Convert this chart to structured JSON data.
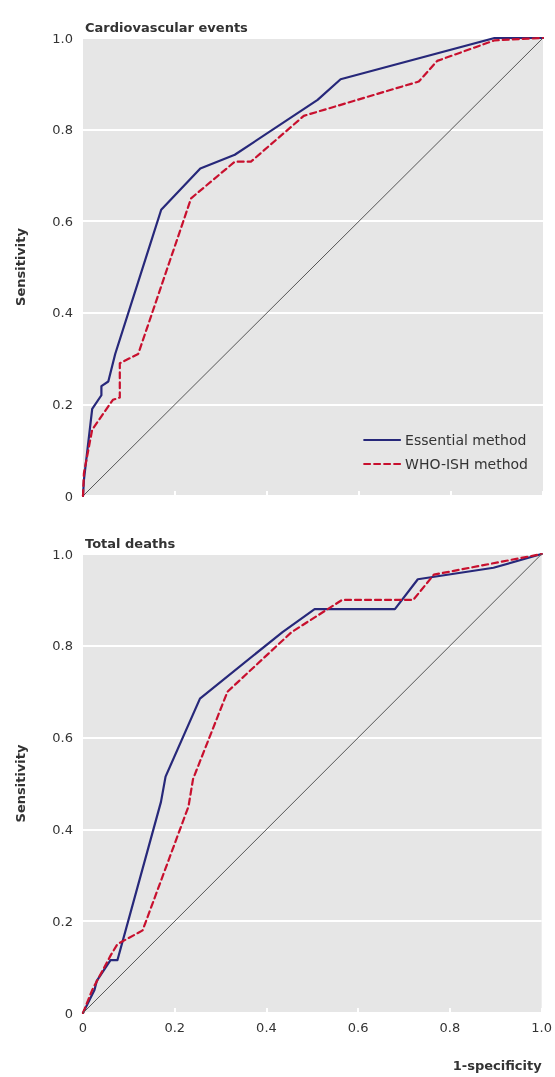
{
  "chart_data": [
    {
      "type": "line",
      "title": "Cardiovascular events",
      "ylabel": "Sensitivity",
      "xlim": [
        0,
        1
      ],
      "ylim": [
        0,
        1
      ],
      "xticks": [
        {
          "value": 0,
          "label": null
        },
        {
          "value": 0.2,
          "label": null
        },
        {
          "value": 0.4,
          "label": null
        },
        {
          "value": 0.6,
          "label": null
        },
        {
          "value": 0.8,
          "label": null
        },
        {
          "value": 1,
          "label": null
        }
      ],
      "yticks": [
        0,
        0.2,
        0.4,
        0.6,
        0.8,
        {
          "value": 1,
          "label": "1.0"
        }
      ],
      "tick_labels": "y",
      "grid": "y",
      "legend": "bottom right",
      "marker": "none",
      "series": [
        {
          "name": "Essential method",
          "color": "#27287a",
          "line_style": "solid",
          "x": [
            0,
            0.002,
            0.02,
            0.04,
            0.04,
            0.055,
            0.07,
            0.17,
            0.255,
            0.33,
            0.51,
            0.56,
            0.895,
            1
          ],
          "values": [
            0,
            0.035,
            0.19,
            0.22,
            0.24,
            0.25,
            0.31,
            0.625,
            0.715,
            0.745,
            0.865,
            0.91,
            1,
            1
          ]
        },
        {
          "name": "WHO-ISH method",
          "color": "#c8102e",
          "line_style": "dashed",
          "x": [
            0,
            0.002,
            0.02,
            0.065,
            0.08,
            0.08,
            0.12,
            0.235,
            0.33,
            0.365,
            0.48,
            0.73,
            0.77,
            0.895,
            1
          ],
          "values": [
            0,
            0.05,
            0.145,
            0.21,
            0.215,
            0.29,
            0.31,
            0.65,
            0.73,
            0.73,
            0.83,
            0.905,
            0.95,
            0.995,
            1
          ]
        },
        {
          "color": "#555555",
          "line_style": "solid",
          "x": [
            0,
            1
          ],
          "values": [
            0,
            1
          ]
        }
      ]
    },
    {
      "type": "line",
      "title": "Total deaths",
      "ylabel": "Sensitivity",
      "xlabel": "1-specificity",
      "xlim": [
        0,
        1
      ],
      "ylim": [
        0,
        1
      ],
      "xticks": [
        0,
        0.2,
        0.4,
        0.6,
        0.8,
        {
          "value": 1,
          "label": "1.0"
        }
      ],
      "yticks": [
        0,
        0.2,
        0.4,
        0.6,
        0.8,
        {
          "value": 1,
          "label": "1.0"
        }
      ],
      "grid": "y",
      "marker": "none",
      "series": [
        {
          "color": "#27287a",
          "line_style": "solid",
          "x": [
            0,
            0.025,
            0.03,
            0.06,
            0.075,
            0.17,
            0.18,
            0.255,
            0.435,
            0.505,
            0.68,
            0.73,
            0.895,
            1
          ],
          "values": [
            0,
            0.05,
            0.07,
            0.115,
            0.115,
            0.46,
            0.515,
            0.685,
            0.83,
            0.88,
            0.88,
            0.945,
            0.97,
            1
          ]
        },
        {
          "color": "#c8102e",
          "line_style": "dashed",
          "x": [
            0,
            0.02,
            0.06,
            0.075,
            0.13,
            0.23,
            0.24,
            0.315,
            0.455,
            0.565,
            0.72,
            0.765,
            1
          ],
          "values": [
            0,
            0.05,
            0.125,
            0.15,
            0.18,
            0.45,
            0.51,
            0.7,
            0.83,
            0.9,
            0.9,
            0.955,
            1
          ]
        },
        {
          "color": "#555555",
          "line_style": "solid",
          "x": [
            0,
            1
          ],
          "values": [
            0,
            1
          ]
        }
      ]
    }
  ]
}
